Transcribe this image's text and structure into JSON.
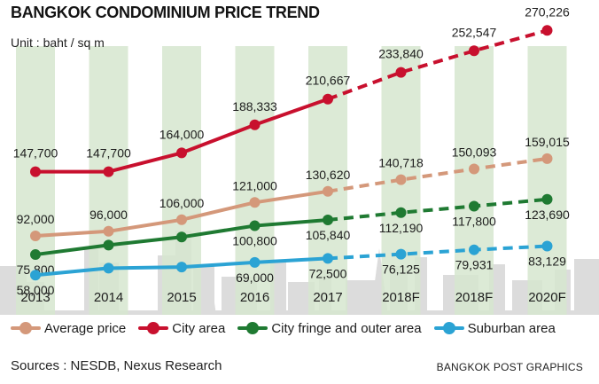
{
  "header": {
    "title": "BANGKOK CONDOMINIUM PRICE TREND",
    "unit": "Unit : baht / sq m"
  },
  "legend": {
    "average": "Average price",
    "city": "City area",
    "fringe": "City fringe and outer area",
    "suburban": "Suburban area"
  },
  "footer": {
    "sources": "Sources : NESDB, Nexus Research",
    "credit": "BANGKOK POST GRAPHICS"
  },
  "colors": {
    "city": "#c8102e",
    "average": "#d4987a",
    "fringe": "#1f7a32",
    "suburban": "#2ba3d4",
    "column": "#d6e6cf",
    "skyline": "#dcdcdc"
  },
  "chart_data": {
    "type": "line",
    "title": "BANGKOK CONDOMINIUM PRICE TREND",
    "ylabel": "Unit : baht / sq m",
    "categories": [
      "2013",
      "2014",
      "2015",
      "2016",
      "2017",
      "2018F",
      "2018F",
      "2020F"
    ],
    "forecast_from_index": 4,
    "ylim": [
      50000,
      280000
    ],
    "series": [
      {
        "name": "City area",
        "color": "#c8102e",
        "values": [
          147700,
          147700,
          164000,
          188333,
          210667,
          233840,
          252547,
          270226
        ],
        "labels": [
          "147,700",
          "147,700",
          "164,000",
          "188,333",
          "210,667",
          "233,840",
          "252,547",
          "270,226"
        ]
      },
      {
        "name": "Average price",
        "color": "#d4987a",
        "values": [
          92000,
          96000,
          106000,
          121000,
          130620,
          140718,
          150093,
          159015
        ],
        "labels": [
          "92,000",
          "96,000",
          "106,000",
          "121,000",
          "130,620",
          "140,718",
          "150,093",
          "159,015"
        ]
      },
      {
        "name": "City fringe and outer area",
        "color": "#1f7a32",
        "values": [
          75800,
          84000,
          91000,
          100800,
          105840,
          112190,
          117800,
          123690
        ],
        "labels": [
          "75,800",
          "",
          "",
          "100,800",
          "105,840",
          "112,190",
          "117,800",
          "123,690"
        ]
      },
      {
        "name": "Suburban area",
        "color": "#2ba3d4",
        "values": [
          58000,
          64000,
          65000,
          69000,
          72500,
          76125,
          79931,
          83129
        ],
        "labels": [
          "58,000",
          "",
          "",
          "69,000",
          "72,500",
          "76,125",
          "79,931",
          "83,129"
        ]
      }
    ]
  }
}
